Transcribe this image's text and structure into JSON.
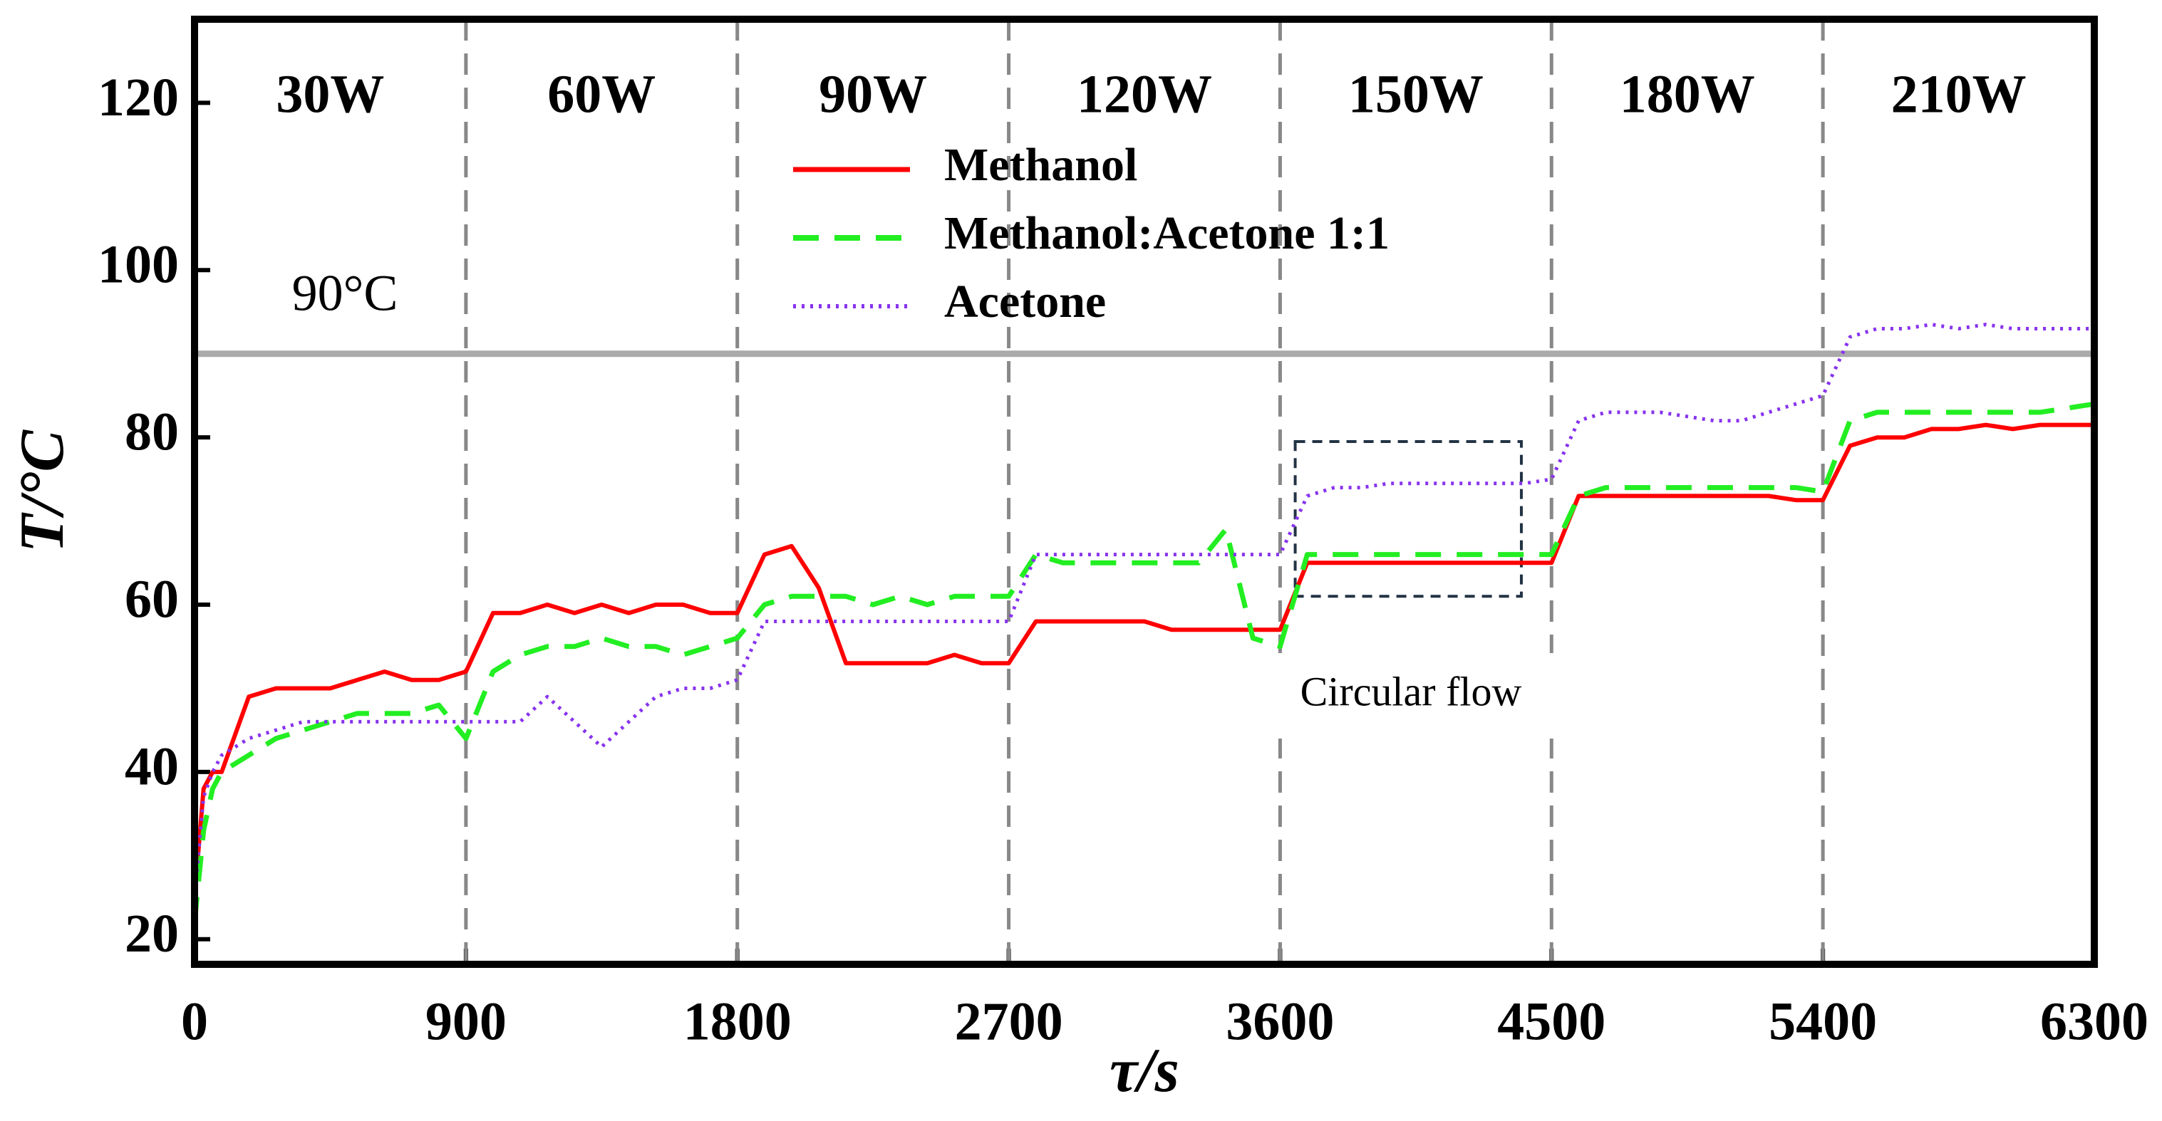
{
  "chart_data": {
    "type": "line",
    "xlabel": "τ/s",
    "ylabel": "T/°C",
    "x": [
      0,
      30,
      60,
      90,
      180,
      270,
      360,
      450,
      540,
      630,
      720,
      810,
      900,
      990,
      1080,
      1170,
      1260,
      1350,
      1440,
      1530,
      1620,
      1710,
      1800,
      1890,
      1980,
      2070,
      2160,
      2250,
      2340,
      2430,
      2520,
      2610,
      2700,
      2790,
      2880,
      2970,
      3060,
      3150,
      3240,
      3330,
      3420,
      3510,
      3600,
      3690,
      3780,
      3870,
      3960,
      4050,
      4140,
      4230,
      4320,
      4410,
      4500,
      4590,
      4680,
      4770,
      4860,
      4950,
      5040,
      5130,
      5220,
      5310,
      5400,
      5490,
      5580,
      5670,
      5760,
      5850,
      5940,
      6030,
      6120,
      6210,
      6300
    ],
    "series": [
      {
        "name": "Methanol",
        "color": "#ff0000",
        "dash": "solid",
        "values": [
          25,
          38,
          40,
          40,
          49,
          50,
          50,
          50,
          51,
          52,
          51,
          51,
          52,
          59,
          59,
          60,
          59,
          60,
          59,
          60,
          60,
          59,
          59,
          66,
          67,
          62,
          53,
          53,
          53,
          53,
          54,
          53,
          53,
          58,
          58,
          58,
          58,
          58,
          57,
          57,
          57,
          57,
          57,
          65,
          65,
          65,
          65,
          65,
          65,
          65,
          65,
          65,
          65,
          73,
          73,
          73,
          73,
          73,
          73,
          73,
          73,
          72.5,
          72.5,
          79,
          80,
          80,
          81,
          81,
          81.5,
          81,
          81.5,
          81.5,
          81.5
        ]
      },
      {
        "name": "Methanol:Acetone 1:1",
        "color": "#22ee22",
        "dash": "dashed",
        "values": [
          22,
          33,
          38,
          40,
          42,
          44,
          45,
          46,
          47,
          47,
          47,
          48,
          44,
          52,
          54,
          55,
          55,
          56,
          55,
          55,
          54,
          55,
          56,
          60,
          61,
          61,
          61,
          60,
          61,
          60,
          61,
          61,
          61,
          66,
          65,
          65,
          65,
          65,
          65,
          65,
          69,
          56,
          55,
          66,
          66,
          66,
          66,
          66,
          66,
          66,
          66,
          66,
          66,
          73,
          74,
          74,
          74,
          74,
          74,
          74,
          74,
          74,
          73.5,
          82,
          83,
          83,
          83,
          83,
          83,
          83,
          83,
          83.5,
          84
        ]
      },
      {
        "name": "Acetone",
        "color": "#8833ee",
        "dash": "dotted",
        "values": [
          25,
          37,
          40,
          42,
          44,
          45,
          46,
          46,
          46,
          46,
          46,
          46,
          46,
          46,
          46,
          49,
          46,
          43,
          46,
          49,
          50,
          50,
          51,
          58,
          58,
          58,
          58,
          58,
          58,
          58,
          58,
          58,
          58,
          66,
          66,
          66,
          66,
          66,
          66,
          66,
          66,
          66,
          66,
          73,
          74,
          74,
          74.5,
          74.5,
          74.5,
          74.5,
          74.5,
          74.5,
          75,
          82,
          83,
          83,
          83,
          82.5,
          82,
          82,
          83,
          84,
          85,
          92,
          93,
          93,
          93.5,
          93,
          93.5,
          93,
          93,
          93,
          93
        ]
      }
    ],
    "xlim": [
      0,
      6300
    ],
    "xticks": [
      0,
      900,
      1800,
      2700,
      3600,
      4500,
      5400,
      6300
    ],
    "ylim": [
      17,
      130
    ],
    "yticks": [
      20,
      40,
      60,
      80,
      100,
      120
    ],
    "segment_labels": [
      "30W",
      "60W",
      "90W",
      "120W",
      "150W",
      "180W",
      "210W"
    ],
    "reference_line": {
      "value": 90,
      "label": "90°C",
      "color": "#aaaaaa"
    },
    "highlight_box": {
      "x": [
        3650,
        4400
      ],
      "y": [
        61,
        79.5
      ],
      "label": "Circular flow"
    },
    "legend": "upper center"
  }
}
